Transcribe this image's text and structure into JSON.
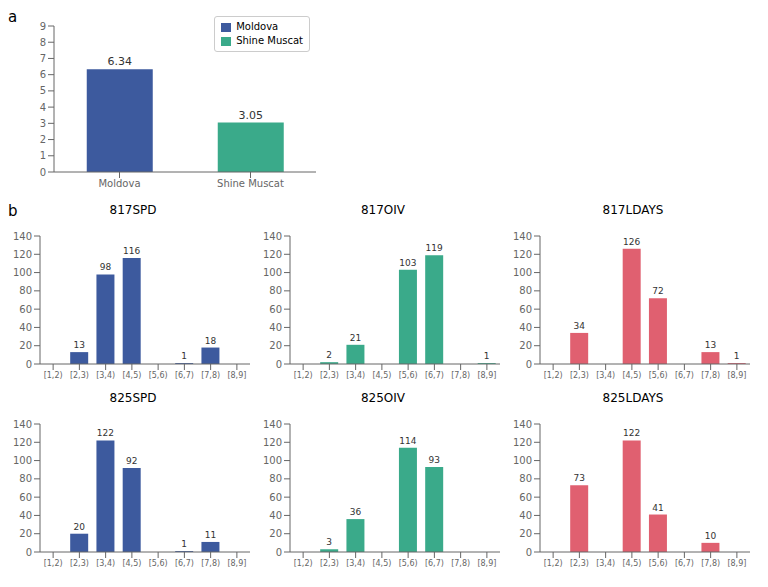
{
  "chart_data": [
    {
      "type": "bar",
      "categories": [
        "Moldova",
        "Shine Muscat"
      ],
      "values": [
        6.34,
        3.05
      ],
      "colors": [
        "#3d5a9e",
        "#3aaa8a"
      ],
      "ylim": [
        0,
        9
      ],
      "yticks": [
        0,
        1,
        2,
        3,
        4,
        5,
        6,
        7,
        8,
        9
      ],
      "data_labels": true,
      "legend": "upper right",
      "grid": false,
      "annotations": [
        "a"
      ]
    },
    {
      "type": "bar",
      "title": "817SPD",
      "categories": [
        "[1,2)",
        "[2,3)",
        "[3,4)",
        "[4,5)",
        "[5,6)",
        "[6,7)",
        "[7,8)",
        "[8,9]"
      ],
      "values": [
        0,
        13,
        98,
        116,
        0,
        1,
        18,
        0
      ],
      "value_labels": [
        null,
        "13",
        "98",
        "116",
        null,
        "1",
        "18",
        null
      ],
      "data_labels": true,
      "color": "#3d5a9e",
      "ylim": [
        0,
        140
      ],
      "yticks": [
        0,
        20,
        40,
        60,
        80,
        100,
        120,
        140
      ],
      "grid": false,
      "annotations": [
        "b"
      ]
    },
    {
      "type": "bar",
      "title": "817OIV",
      "categories": [
        "[1,2)",
        "[2,3)",
        "[3,4)",
        "[4,5)",
        "[5,6)",
        "[6,7)",
        "[7,8)",
        "[8,9]"
      ],
      "values": [
        0,
        2,
        21,
        0,
        103,
        119,
        0,
        1
      ],
      "value_labels": [
        null,
        "2",
        "21",
        null,
        "103",
        "119",
        null,
        "1"
      ],
      "data_labels": true,
      "color": "#3aaa8a",
      "ylim": [
        0,
        140
      ],
      "yticks": [
        0,
        20,
        40,
        60,
        80,
        100,
        120,
        140
      ],
      "grid": false
    },
    {
      "type": "bar",
      "title": "817LDAYS",
      "categories": [
        "[1,2)",
        "[2,3)",
        "[3,4)",
        "[4,5)",
        "[5,6)",
        "[6,7)",
        "[7,8)",
        "[8,9]"
      ],
      "values": [
        0,
        34,
        0,
        126,
        72,
        0,
        13,
        1
      ],
      "value_labels": [
        null,
        "34",
        null,
        "126",
        "72",
        null,
        "13",
        "1"
      ],
      "data_labels": true,
      "color": "#e06070",
      "ylim": [
        0,
        140
      ],
      "yticks": [
        0,
        20,
        40,
        60,
        80,
        100,
        120,
        140
      ],
      "grid": false
    },
    {
      "type": "bar",
      "title": "825SPD",
      "categories": [
        "[1,2)",
        "[2,3)",
        "[3,4)",
        "[4,5)",
        "[5,6)",
        "[6,7)",
        "[7,8)",
        "[8,9]"
      ],
      "values": [
        0,
        20,
        122,
        92,
        0,
        1,
        11,
        0
      ],
      "value_labels": [
        null,
        "20",
        "122",
        "92",
        null,
        "1",
        "11",
        null
      ],
      "data_labels": true,
      "color": "#3d5a9e",
      "ylim": [
        0,
        140
      ],
      "yticks": [
        0,
        20,
        40,
        60,
        80,
        100,
        120,
        140
      ],
      "grid": false
    },
    {
      "type": "bar",
      "title": "825OIV",
      "categories": [
        "[1,2)",
        "[2,3)",
        "[3,4)",
        "[4,5)",
        "[5,6)",
        "[6,7)",
        "[7,8)",
        "[8,9]"
      ],
      "values": [
        0,
        3,
        36,
        0,
        114,
        93,
        0,
        0
      ],
      "value_labels": [
        null,
        "3",
        "36",
        null,
        "114",
        "93",
        null,
        null
      ],
      "data_labels": true,
      "color": "#3aaa8a",
      "ylim": [
        0,
        140
      ],
      "yticks": [
        0,
        20,
        40,
        60,
        80,
        100,
        120,
        140
      ],
      "grid": false
    },
    {
      "type": "bar",
      "title": "825LDAYS",
      "categories": [
        "[1,2)",
        "[2,3)",
        "[3,4)",
        "[4,5)",
        "[5,6)",
        "[6,7)",
        "[7,8)",
        "[8,9]"
      ],
      "values": [
        0,
        73,
        0,
        122,
        41,
        0,
        10,
        0
      ],
      "value_labels": [
        null,
        "73",
        null,
        "122",
        "41",
        null,
        "10",
        null
      ],
      "data_labels": true,
      "color": "#e06070",
      "ylim": [
        0,
        140
      ],
      "yticks": [
        0,
        20,
        40,
        60,
        80,
        100,
        120,
        140
      ],
      "grid": false
    }
  ]
}
